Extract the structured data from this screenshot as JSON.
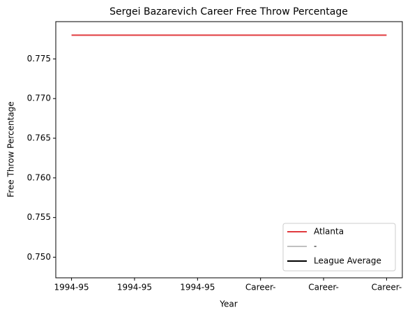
{
  "chart_data": {
    "type": "line",
    "title": "Sergei Bazarevich Career Free Throw Percentage",
    "x_label": "Year",
    "y_label": "Free Throw Percentage",
    "categories": [
      "1994-95",
      "1994-95",
      "1994-95",
      "Career-",
      "Career-",
      "Career-"
    ],
    "series": [
      {
        "name": "Atlanta",
        "color": "#e03a3e",
        "values": [
          0.778,
          0.778,
          0.778,
          0.778,
          0.778,
          0.778
        ]
      },
      {
        "name": "-",
        "color": "#c0c0c0",
        "values": [
          null,
          null,
          null,
          null,
          null,
          null
        ]
      },
      {
        "name": "League Average",
        "color": "#000000",
        "values": [
          null,
          null,
          null,
          null,
          null,
          null
        ]
      }
    ],
    "ylim": [
      0.7474,
      0.7797
    ],
    "yticks": [
      {
        "value": 0.75,
        "label": "0.750"
      },
      0.755,
      {
        "value": 0.76,
        "label": "0.760"
      },
      0.765,
      {
        "value": 0.77,
        "label": "0.770"
      },
      0.775
    ],
    "legend": "lower right"
  }
}
